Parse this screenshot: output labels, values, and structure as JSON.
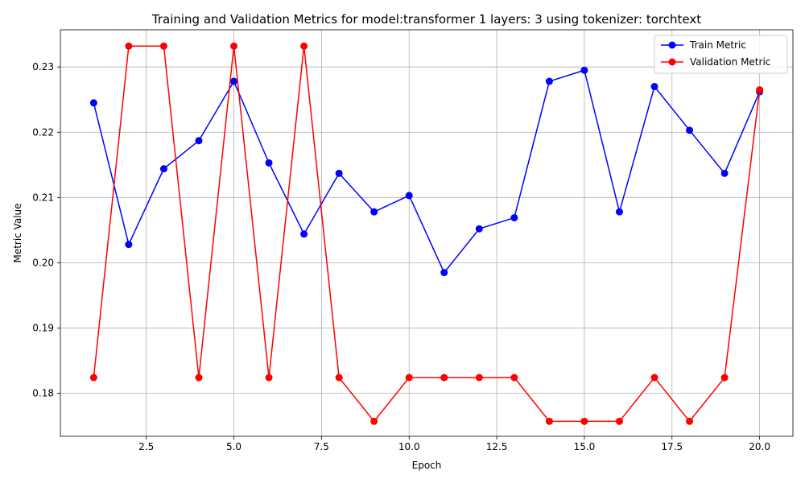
{
  "chart_data": {
    "type": "line",
    "title": "Training and Validation Metrics for model:transformer 1 layers: 3 using tokenizer: torchtext",
    "xlabel": "Epoch",
    "ylabel": "Metric Value",
    "xlim": [
      0.05,
      20.95
    ],
    "ylim": [
      0.1734,
      0.2357
    ],
    "xticks": [
      2.5,
      5.0,
      7.5,
      10.0,
      12.5,
      15.0,
      17.5,
      20.0
    ],
    "xtick_labels": [
      "2.5",
      "5.0",
      "7.5",
      "10.0",
      "12.5",
      "15.0",
      "17.5",
      "20.0"
    ],
    "yticks": [
      0.18,
      0.19,
      0.2,
      0.21,
      0.22,
      0.23
    ],
    "ytick_labels": [
      "0.18",
      "0.19",
      "0.20",
      "0.21",
      "0.22",
      "0.23"
    ],
    "grid": true,
    "legend_position": "top-right",
    "x": [
      1,
      2,
      3,
      4,
      5,
      6,
      7,
      8,
      9,
      10,
      11,
      12,
      13,
      14,
      15,
      16,
      17,
      18,
      19,
      20
    ],
    "series": [
      {
        "name": "Train Metric",
        "color": "#0000ff",
        "values": [
          0.2245,
          0.2028,
          0.2144,
          0.2187,
          0.2278,
          0.2153,
          0.2044,
          0.2137,
          0.2078,
          0.2103,
          0.1985,
          0.2052,
          0.2069,
          0.2278,
          0.2295,
          0.2078,
          0.227,
          0.2203,
          0.2137,
          0.2262
        ]
      },
      {
        "name": "Validation Metric",
        "color": "#ff0000",
        "values": [
          0.1824,
          0.2332,
          0.2332,
          0.1824,
          0.2332,
          0.1824,
          0.2332,
          0.1824,
          0.1757,
          0.1824,
          0.1824,
          0.1824,
          0.1824,
          0.1757,
          0.1757,
          0.1757,
          0.1824,
          0.1757,
          0.1824,
          0.2265
        ]
      }
    ]
  }
}
